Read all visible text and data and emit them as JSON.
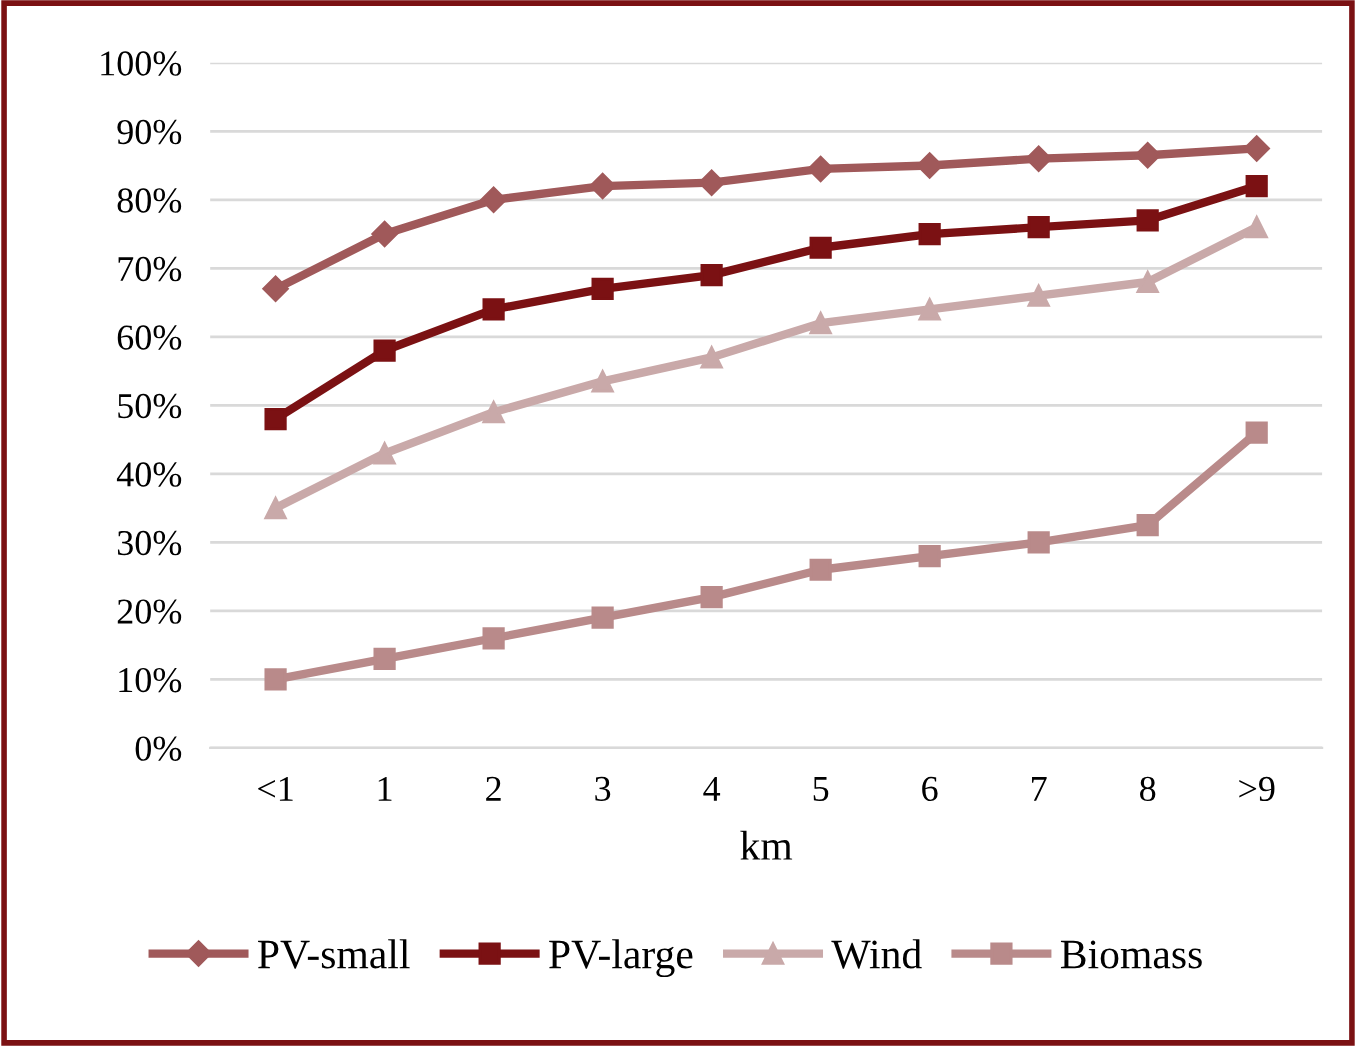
{
  "chart_data": {
    "type": "line",
    "xlabel": "km",
    "categories": [
      "<1",
      "1",
      "2",
      "3",
      "4",
      "5",
      "6",
      "7",
      "8",
      ">9"
    ],
    "series": [
      {
        "name": "PV-small",
        "color": "#a0595a",
        "marker": "diamond",
        "values": [
          67,
          75,
          80,
          82,
          82.5,
          84.5,
          85,
          86,
          86.5,
          87.5
        ]
      },
      {
        "name": "PV-large",
        "color": "#7b1113",
        "marker": "square",
        "values": [
          48,
          58,
          64,
          67,
          69,
          73,
          75,
          76,
          77,
          82
        ]
      },
      {
        "name": "Wind",
        "color": "#c9a9a9",
        "marker": "triangle",
        "values": [
          35,
          43,
          49,
          53.5,
          57,
          62,
          64,
          66,
          68,
          76
        ]
      },
      {
        "name": "Biomass",
        "color": "#b98a8a",
        "marker": "square",
        "values": [
          10,
          13,
          16,
          19,
          22,
          26,
          28,
          30,
          32.5,
          46
        ]
      }
    ],
    "ylim": [
      0,
      100
    ],
    "yticks": [
      {
        "value": 0,
        "label": "0%"
      },
      {
        "value": 10,
        "label": "10%"
      },
      {
        "value": 20,
        "label": "20%"
      },
      {
        "value": 30,
        "label": "30%"
      },
      {
        "value": 40,
        "label": "40%"
      },
      {
        "value": 50,
        "label": "50%"
      },
      {
        "value": 60,
        "label": "60%"
      },
      {
        "value": 70,
        "label": "70%"
      },
      {
        "value": 80,
        "label": "80%"
      },
      {
        "value": 90,
        "label": "90%"
      },
      {
        "value": 100,
        "label": "100%"
      }
    ],
    "grid": "y",
    "legend": "bottom",
    "line_style": "solid"
  }
}
